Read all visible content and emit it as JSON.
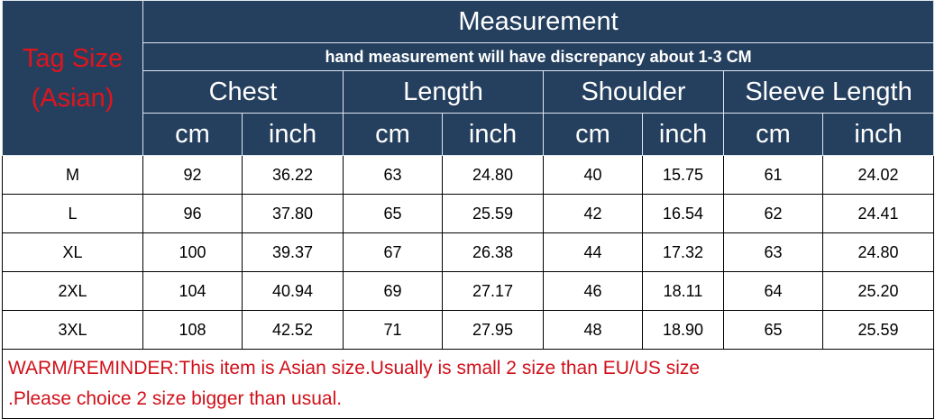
{
  "header": {
    "tag_size_line1": "Tag Size",
    "tag_size_line2": "(Asian)",
    "title": "Measurement",
    "note": "hand measurement will have discrepancy about 1-3 CM",
    "groups": [
      "Chest",
      "Length",
      "Shoulder",
      "Sleeve Length"
    ],
    "units": [
      "cm",
      "inch",
      "cm",
      "inch",
      "cm",
      "inch",
      "cm",
      "inch"
    ]
  },
  "rows": [
    {
      "size": "M",
      "values": [
        "92",
        "36.22",
        "63",
        "24.80",
        "40",
        "15.75",
        "61",
        "24.02"
      ]
    },
    {
      "size": "L",
      "values": [
        "96",
        "37.80",
        "65",
        "25.59",
        "42",
        "16.54",
        "62",
        "24.41"
      ]
    },
    {
      "size": "XL",
      "values": [
        "100",
        "39.37",
        "67",
        "26.38",
        "44",
        "17.32",
        "63",
        "24.80"
      ]
    },
    {
      "size": "2XL",
      "values": [
        "104",
        "40.94",
        "69",
        "27.17",
        "46",
        "18.11",
        "64",
        "25.20"
      ]
    },
    {
      "size": "3XL",
      "values": [
        "108",
        "42.52",
        "71",
        "27.95",
        "48",
        "18.90",
        "65",
        "25.59"
      ]
    }
  ],
  "reminder": {
    "line1": "WARM/REMINDER:This item is Asian size.Usually is small 2 size than EU/US size",
    "line2": ".Please choice 2 size bigger than usual."
  },
  "colors": {
    "header_bg": "#25405f",
    "header_text": "#ffffff",
    "tag_text": "#e0141c",
    "reminder_text": "#d0101a"
  }
}
